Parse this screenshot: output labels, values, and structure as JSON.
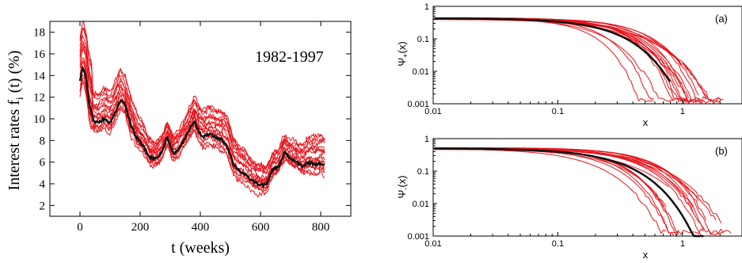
{
  "chart_data": [
    {
      "id": "left",
      "type": "line",
      "title": "",
      "annotation": "1982-1997",
      "xlabel": "t (weeks)",
      "ylabel_main": "Interest rates f",
      "ylabel_sub": "i",
      "ylabel_tail": " (t) (%)",
      "xlim": [
        -100,
        900
      ],
      "ylim": [
        1,
        19
      ],
      "xticks": [
        0,
        200,
        400,
        600,
        800
      ],
      "xtick_labels": [
        "0",
        "200",
        "400",
        "600",
        "800"
      ],
      "yticks": [
        2,
        4,
        6,
        8,
        10,
        12,
        14,
        16,
        18
      ],
      "ytick_labels": [
        "2",
        "4",
        "6",
        "8",
        "10",
        "12",
        "14",
        "16",
        "18"
      ],
      "colors": {
        "series": "#e8141c",
        "mean": "#111111"
      },
      "mean_series": {
        "x": [
          0,
          10,
          20,
          30,
          45,
          60,
          80,
          100,
          120,
          135,
          150,
          170,
          190,
          210,
          230,
          250,
          270,
          290,
          310,
          330,
          350,
          370,
          380,
          395,
          410,
          430,
          450,
          470,
          490,
          510,
          530,
          550,
          570,
          600,
          620,
          640,
          660,
          680,
          700,
          720,
          740,
          760,
          780,
          800,
          815
        ],
        "y": [
          13.5,
          14.8,
          13.8,
          11.5,
          9.8,
          9.6,
          10.0,
          9.6,
          10.8,
          11.8,
          11.3,
          9.3,
          8.2,
          7.5,
          6.5,
          6.3,
          6.8,
          8.3,
          6.8,
          7.2,
          8.3,
          9.3,
          9.8,
          8.8,
          8.3,
          8.6,
          8.3,
          8.1,
          7.5,
          5.8,
          5.2,
          4.8,
          4.3,
          3.9,
          3.9,
          5.3,
          5.6,
          6.9,
          6.3,
          6.0,
          5.6,
          6.0,
          5.8,
          5.9,
          5.6
        ]
      },
      "series_count": 16,
      "series_offsets": [
        -0.8,
        -0.6,
        -0.4,
        -0.2,
        0.0,
        0.2,
        0.4,
        0.6,
        0.8,
        1.0,
        1.2,
        1.4,
        1.6,
        1.8,
        2.0,
        2.2
      ]
    },
    {
      "id": "top-right",
      "type": "line",
      "label": "(a)",
      "xlabel": "x",
      "ylabel": "Ψ+(x)",
      "ylabel_main": "Ψ",
      "ylabel_sub": "+",
      "ylabel_tail": "(x)",
      "x_scale": "log",
      "y_scale": "log",
      "xlim": [
        0.01,
        3
      ],
      "ylim": [
        0.001,
        1
      ],
      "xticks": [
        0.01,
        0.1,
        1
      ],
      "xtick_labels": [
        "0.01",
        "0.1",
        "1"
      ],
      "yticks": [
        0.001,
        0.01,
        0.1,
        1
      ],
      "ytick_labels": [
        "0.001",
        "0.01",
        "0.1",
        "1"
      ],
      "mean_curve": {
        "x0": 0.27,
        "beta": 1.4,
        "amplitude": 0.43,
        "x_end": 0.8
      },
      "series_count": 18,
      "colors": {
        "series": "#e8141c",
        "mean": "#111111"
      }
    },
    {
      "id": "bottom-right",
      "type": "line",
      "label": "(b)",
      "xlabel": "x",
      "ylabel": "Ψ-(x)",
      "ylabel_main": "Ψ",
      "ylabel_sub": "-",
      "ylabel_tail": "(x)",
      "x_scale": "log",
      "y_scale": "log",
      "xlim": [
        0.01,
        3
      ],
      "ylim": [
        0.001,
        1
      ],
      "xticks": [
        0.01,
        0.1,
        1
      ],
      "xtick_labels": [
        "0.01",
        "0.1",
        "1"
      ],
      "yticks": [
        0.001,
        0.01,
        0.1,
        1
      ],
      "ytick_labels": [
        "0.001",
        "0.01",
        "0.1",
        "1"
      ],
      "mean_curve": {
        "x0": 0.3,
        "beta": 1.3,
        "amplitude": 0.5,
        "x_end": 1.5
      },
      "series_count": 18,
      "colors": {
        "series": "#e8141c",
        "mean": "#111111"
      }
    }
  ]
}
